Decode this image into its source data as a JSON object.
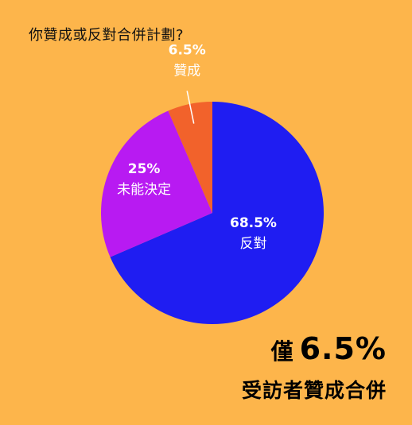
{
  "question": "你贊成或反對合併計劃?",
  "chart_data": {
    "type": "pie",
    "slices": [
      {
        "label": "反對",
        "value": 68.5,
        "value_label": "68.5%",
        "color": "#1F1DF2",
        "text_color": "#FFFFFF"
      },
      {
        "label": "未能決定",
        "value": 25,
        "value_label": "25%",
        "color": "#B81AF2",
        "text_color": "#FFFFFF"
      },
      {
        "label": "贊成",
        "value": 6.5,
        "value_label": "6.5%",
        "color": "#F2622B",
        "text_color": "#FFFFFF"
      }
    ],
    "start": "12 o'clock, clockwise",
    "legend": "none"
  },
  "headline": {
    "prefix": "僅",
    "value": "6.5%",
    "line2": "受訪者贊成合併"
  }
}
